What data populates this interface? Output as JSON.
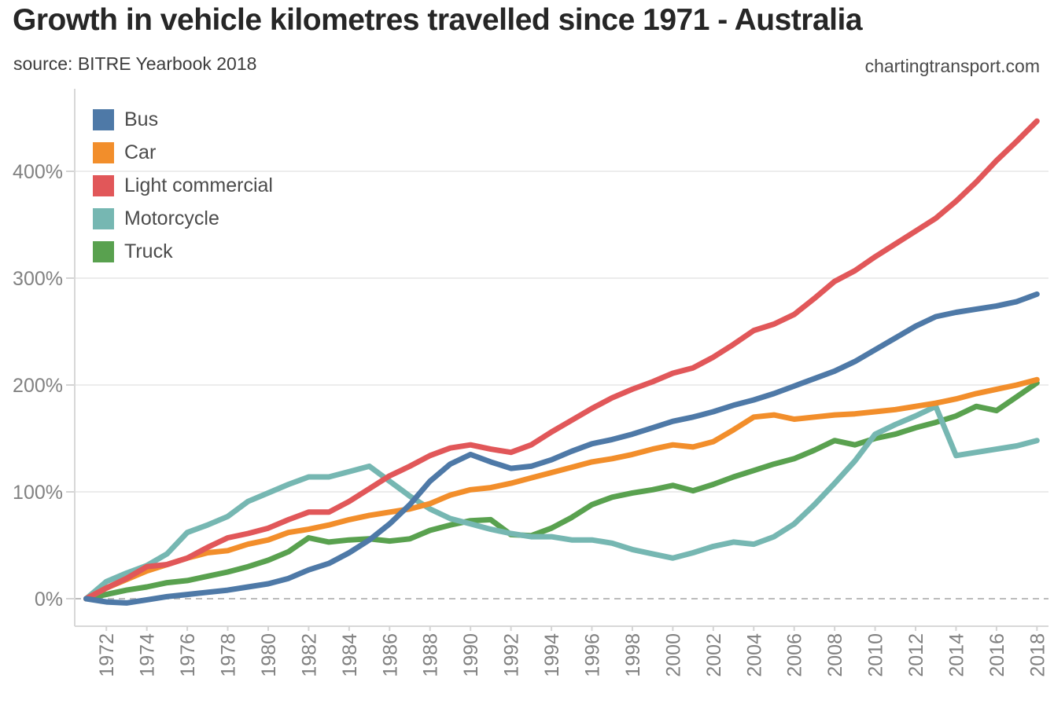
{
  "header": {
    "title": "Growth in vehicle kilometres travelled since 1971 - Australia",
    "subtitle": "source: BITRE Yearbook 2018",
    "website": "chartingtransport.com"
  },
  "chart_data": {
    "type": "line",
    "title": "Growth in vehicle kilometres travelled since 1971 - Australia",
    "xlabel": "",
    "ylabel": "",
    "unit": "% growth since 1971",
    "grid": "horizontal",
    "zero_line": "dashed",
    "legend_position": "top-left-inside",
    "xlim": [
      1971,
      2018
    ],
    "ylim": [
      -26,
      476
    ],
    "y_ticks": [
      "0%",
      "100%",
      "200%",
      "300%",
      "400%"
    ],
    "x_ticks": [
      "1972",
      "1974",
      "1976",
      "1978",
      "1980",
      "1982",
      "1984",
      "1986",
      "1988",
      "1990",
      "1992",
      "1994",
      "1996",
      "1998",
      "2000",
      "2002",
      "2004",
      "2006",
      "2008",
      "2010",
      "2012",
      "2014",
      "2016",
      "2018"
    ],
    "x": [
      1971,
      1972,
      1973,
      1974,
      1975,
      1976,
      1977,
      1978,
      1979,
      1980,
      1981,
      1982,
      1983,
      1984,
      1985,
      1986,
      1987,
      1988,
      1989,
      1990,
      1991,
      1992,
      1993,
      1994,
      1995,
      1996,
      1997,
      1998,
      1999,
      2000,
      2001,
      2002,
      2003,
      2004,
      2005,
      2006,
      2007,
      2008,
      2009,
      2010,
      2011,
      2012,
      2013,
      2014,
      2015,
      2016,
      2017,
      2018
    ],
    "series": [
      {
        "name": "Bus",
        "color": "#4e79a7",
        "values": [
          0,
          -3,
          -4,
          -1,
          2,
          4,
          6,
          8,
          11,
          14,
          19,
          27,
          33,
          43,
          55,
          70,
          88,
          110,
          126,
          135,
          128,
          122,
          124,
          130,
          138,
          145,
          149,
          154,
          160,
          166,
          170,
          175,
          181,
          186,
          192,
          199,
          206,
          213,
          222,
          233,
          244,
          255,
          264,
          268,
          271,
          274,
          278,
          285
        ]
      },
      {
        "name": "Car",
        "color": "#f28e2b",
        "values": [
          0,
          10,
          18,
          26,
          32,
          38,
          43,
          45,
          51,
          55,
          62,
          65,
          69,
          74,
          78,
          81,
          84,
          89,
          97,
          102,
          104,
          108,
          113,
          118,
          123,
          128,
          131,
          135,
          140,
          144,
          142,
          147,
          158,
          170,
          172,
          168,
          170,
          172,
          173,
          175,
          177,
          180,
          183,
          187,
          192,
          196,
          200,
          205
        ]
      },
      {
        "name": "Light commercial",
        "color": "#e15759",
        "values": [
          0,
          10,
          19,
          30,
          32,
          38,
          48,
          57,
          61,
          66,
          74,
          81,
          81,
          91,
          103,
          115,
          124,
          134,
          141,
          144,
          140,
          137,
          144,
          156,
          167,
          178,
          188,
          196,
          203,
          211,
          216,
          226,
          238,
          251,
          257,
          266,
          281,
          297,
          307,
          320,
          332,
          344,
          356,
          372,
          390,
          410,
          428,
          447
        ]
      },
      {
        "name": "Motorcycle",
        "color": "#76b7b2",
        "values": [
          0,
          16,
          24,
          31,
          42,
          62,
          69,
          77,
          91,
          99,
          107,
          114,
          114,
          119,
          124,
          110,
          96,
          84,
          75,
          70,
          65,
          61,
          58,
          58,
          55,
          55,
          52,
          46,
          42,
          38,
          43,
          49,
          53,
          51,
          58,
          70,
          88,
          108,
          129,
          154,
          163,
          171,
          180,
          134,
          137,
          140,
          143,
          148
        ]
      },
      {
        "name": "Truck",
        "color": "#59a14f",
        "values": [
          0,
          4,
          8,
          11,
          15,
          17,
          21,
          25,
          30,
          36,
          44,
          57,
          53,
          55,
          56,
          54,
          56,
          64,
          69,
          73,
          74,
          60,
          59,
          66,
          76,
          88,
          95,
          99,
          102,
          106,
          101,
          107,
          114,
          120,
          126,
          131,
          139,
          148,
          144,
          150,
          154,
          160,
          165,
          171,
          180,
          176,
          189,
          202
        ]
      }
    ],
    "draw_order": [
      "Truck",
      "Motorcycle",
      "Car",
      "Light commercial",
      "Bus"
    ]
  }
}
